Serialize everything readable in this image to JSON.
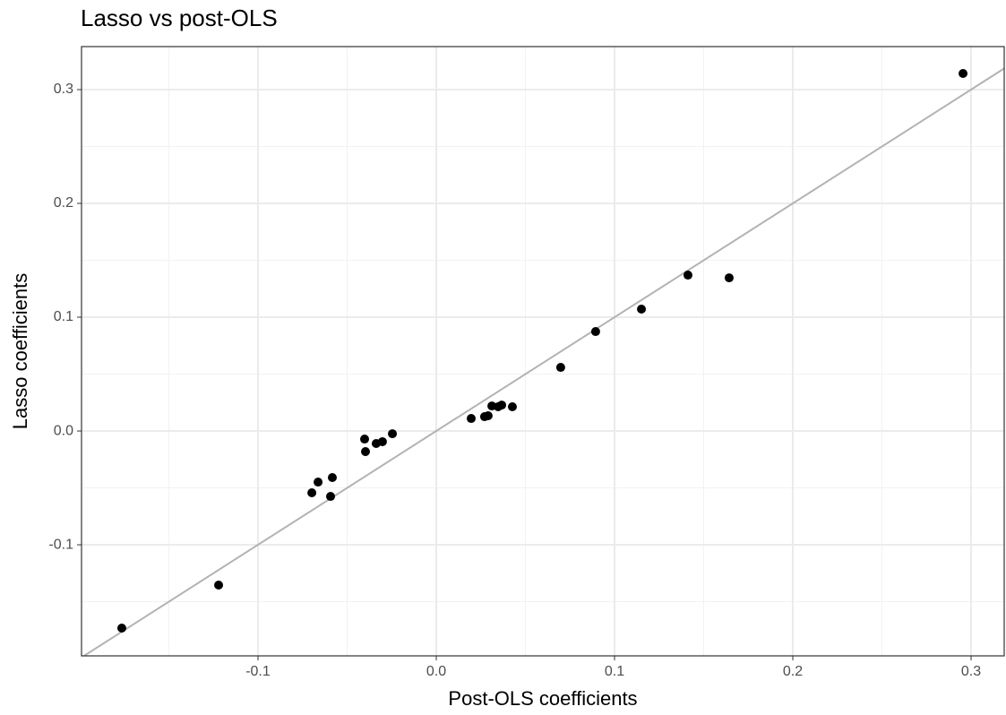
{
  "chart_data": {
    "type": "scatter",
    "title": "Lasso vs post-OLS",
    "x_label": "Post-OLS coefficients",
    "y_label": "Lasso coefficients",
    "x": [
      -0.1764,
      -0.1221,
      -0.0698,
      -0.0663,
      -0.0593,
      -0.0583,
      -0.0402,
      -0.0397,
      -0.0337,
      -0.0302,
      -0.0246,
      0.0196,
      0.0271,
      0.0291,
      0.0312,
      0.0347,
      0.0367,
      0.0427,
      0.0698,
      0.0894,
      0.1151,
      0.1412,
      0.1643,
      0.2955
    ],
    "values": [
      -0.1732,
      -0.1354,
      -0.0543,
      -0.0449,
      -0.0575,
      -0.0409,
      -0.0071,
      -0.0181,
      -0.011,
      -0.0094,
      -0.0024,
      0.011,
      0.0126,
      0.0134,
      0.022,
      0.0213,
      0.0228,
      0.0213,
      0.0559,
      0.0874,
      0.1071,
      0.137,
      0.1346,
      0.3142
    ],
    "color": "#000000",
    "xlim": [
      -0.199,
      0.3186
    ],
    "ylim": [
      -0.1976,
      0.3378
    ],
    "xticks": [
      -0.1,
      {
        "value": 0,
        "label": "0.0"
      },
      0.1,
      0.2,
      0.3
    ],
    "yticks": [
      -0.1,
      {
        "value": 0,
        "label": "0.0"
      },
      0.1,
      0.2,
      0.3
    ],
    "x_minor_ticks": [
      -0.15,
      -0.05,
      0.05,
      0.15,
      0.25
    ],
    "y_minor_ticks": [
      -0.15,
      -0.05,
      0.05,
      0.15,
      0.25
    ],
    "grid": true,
    "reference_line": {
      "slope": 1,
      "intercept": 0,
      "color": "#b3b3b3"
    }
  }
}
